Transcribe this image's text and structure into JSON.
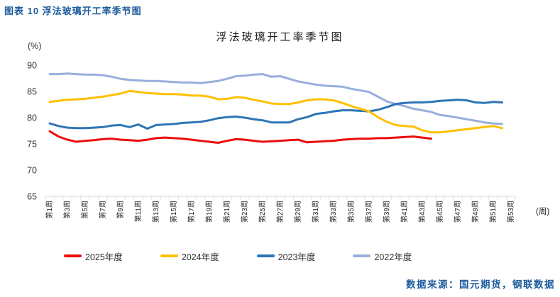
{
  "page": {
    "header": "图表 10 浮法玻璃开工率季节图",
    "source_note": "数据来源：国元期货，钢联数据"
  },
  "chart_data": {
    "type": "line",
    "title": "浮法玻璃开工率季节图",
    "y_unit": "(%)",
    "x_unit": "(周)",
    "xlabel": "周",
    "ylabel": "%",
    "ylim": [
      65,
      90
    ],
    "y_ticks": [
      90,
      85,
      80,
      75,
      70,
      65
    ],
    "x_weeks": 53,
    "x_tick_labels": [
      "第1周",
      "第3周",
      "第5周",
      "第7周",
      "第9周",
      "第11周",
      "第13周",
      "第15周",
      "第17周",
      "第19周",
      "第21周",
      "第23周",
      "第25周",
      "第27周",
      "第29周",
      "第31周",
      "第33周",
      "第35周",
      "第37周",
      "第39周",
      "第41周",
      "第43周",
      "第45周",
      "第47周",
      "第49周",
      "第51周",
      "第53周"
    ],
    "x_tick_label_rotation": 90,
    "gridlines": false,
    "legend_position": "bottom",
    "series": [
      {
        "name": "2025年度",
        "color": "#ec0d0d",
        "start_week": 1,
        "values": [
          77.4,
          76.4,
          75.8,
          75.4,
          75.6,
          75.7,
          75.9,
          76.0,
          75.8,
          75.7,
          75.6,
          75.8,
          76.1,
          76.2,
          76.1,
          76.0,
          75.8,
          75.6,
          75.4,
          75.2,
          75.6,
          75.9,
          75.8,
          75.6,
          75.4,
          75.5,
          75.6,
          75.7,
          75.8,
          75.3,
          75.4,
          75.5,
          75.6,
          75.8,
          75.9,
          76.0,
          76.0,
          76.1,
          76.1,
          76.2,
          76.3,
          76.4,
          76.2,
          76.0
        ]
      },
      {
        "name": "2024年度",
        "color": "#ffc000",
        "start_week": 1,
        "values": [
          83.0,
          83.2,
          83.4,
          83.5,
          83.6,
          83.8,
          84.0,
          84.3,
          84.6,
          85.1,
          84.9,
          84.7,
          84.6,
          84.5,
          84.5,
          84.4,
          84.2,
          84.2,
          84.0,
          83.5,
          83.6,
          83.9,
          83.8,
          83.4,
          83.1,
          82.7,
          82.6,
          82.6,
          82.9,
          83.3,
          83.5,
          83.5,
          83.3,
          82.8,
          82.2,
          81.7,
          81.2,
          80.1,
          79.2,
          78.6,
          78.4,
          78.3,
          77.6,
          77.2,
          77.2,
          77.4,
          77.6,
          77.8,
          78.0,
          78.2,
          78.4,
          78.0
        ]
      },
      {
        "name": "2023年度",
        "color": "#2e75b6",
        "start_week": 1,
        "values": [
          78.9,
          78.4,
          78.1,
          78.0,
          78.0,
          78.1,
          78.2,
          78.5,
          78.6,
          78.2,
          78.7,
          77.9,
          78.6,
          78.7,
          78.8,
          79.0,
          79.1,
          79.2,
          79.5,
          79.9,
          80.1,
          80.2,
          80.0,
          79.7,
          79.5,
          79.1,
          79.1,
          79.1,
          79.7,
          80.1,
          80.7,
          80.9,
          81.2,
          81.4,
          81.4,
          81.3,
          81.2,
          81.5,
          82.0,
          82.6,
          82.8,
          82.9,
          82.9,
          83.0,
          83.2,
          83.3,
          83.4,
          83.3,
          82.9,
          82.8,
          83.0,
          82.9
        ]
      },
      {
        "name": "2022年度",
        "color": "#98aedd",
        "start_week": 1,
        "values": [
          88.3,
          88.3,
          88.4,
          88.3,
          88.2,
          88.2,
          88.1,
          87.8,
          87.4,
          87.2,
          87.1,
          87.0,
          87.0,
          86.9,
          86.8,
          86.7,
          86.7,
          86.6,
          86.8,
          87.0,
          87.4,
          87.9,
          88.0,
          88.2,
          88.3,
          87.8,
          87.9,
          87.4,
          86.9,
          86.6,
          86.3,
          86.1,
          86.0,
          85.9,
          85.5,
          85.2,
          84.9,
          84.0,
          83.1,
          82.6,
          82.2,
          81.7,
          81.4,
          81.1,
          80.5,
          80.3,
          80.0,
          79.7,
          79.4,
          79.1,
          78.9,
          78.8
        ]
      }
    ]
  }
}
